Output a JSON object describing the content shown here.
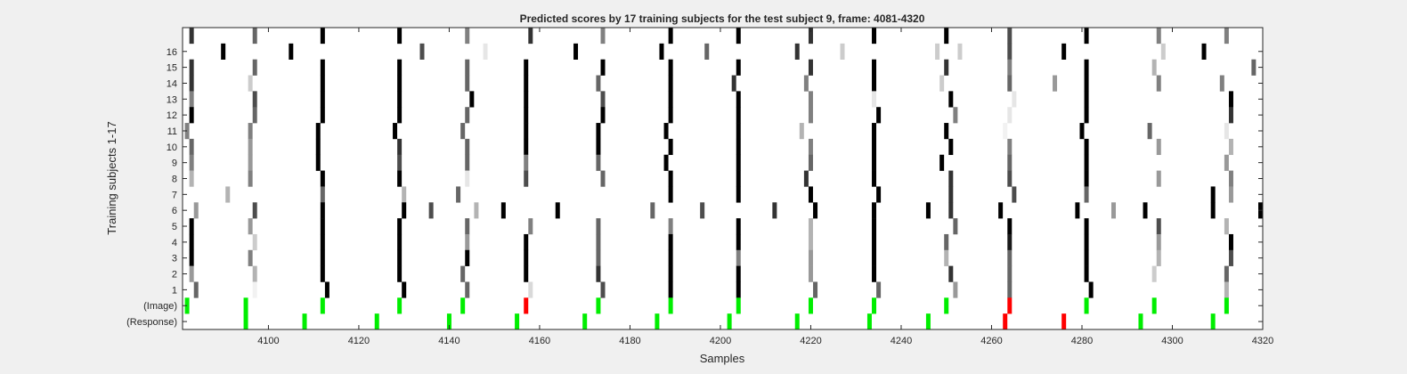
{
  "chart_data": {
    "type": "heatmap",
    "title": "Predicted scores by 17 training subjects for the test subject 9, frame: 4081-4320",
    "xlabel": "Samples",
    "ylabel": "Training subjects 1-17",
    "xlim": [
      4081,
      4320
    ],
    "x_ticks": [
      "4100",
      "4120",
      "4140",
      "4160",
      "4180",
      "4200",
      "4220",
      "4240",
      "4260",
      "4280",
      "4300",
      "4320"
    ],
    "y_ticks": [
      "16",
      "15",
      "14",
      "13",
      "12",
      "11",
      "10",
      "9",
      "8",
      "7",
      "6",
      "5",
      "4",
      "3",
      "2",
      "1",
      "(Image)",
      "(Response)"
    ],
    "rows": [
      "17",
      "16",
      "15",
      "14",
      "13",
      "12",
      "11",
      "10",
      "9",
      "8",
      "7",
      "6",
      "5",
      "4",
      "3",
      "2",
      "1",
      "(Image)",
      "(Response)"
    ],
    "colors": {
      "target": "#00ee00",
      "nontarget": "#ff0000",
      "background": "#ffffff",
      "figure": "#f0f0f0",
      "axis": "#262626"
    },
    "score_scale": "0 = white, 1 = black",
    "image_events": [
      {
        "x": 4082,
        "state": "target"
      },
      {
        "x": 4095,
        "state": "target"
      },
      {
        "x": 4112,
        "state": "target"
      },
      {
        "x": 4129,
        "state": "target"
      },
      {
        "x": 4143,
        "state": "target"
      },
      {
        "x": 4157,
        "state": "nontarget"
      },
      {
        "x": 4173,
        "state": "target"
      },
      {
        "x": 4189,
        "state": "target"
      },
      {
        "x": 4204,
        "state": "target"
      },
      {
        "x": 4220,
        "state": "target"
      },
      {
        "x": 4234,
        "state": "target"
      },
      {
        "x": 4250,
        "state": "target"
      },
      {
        "x": 4264,
        "state": "nontarget"
      },
      {
        "x": 4281,
        "state": "target"
      },
      {
        "x": 4296,
        "state": "target"
      },
      {
        "x": 4312,
        "state": "target"
      }
    ],
    "response_events": [
      {
        "x": 4095,
        "state": "target"
      },
      {
        "x": 4108,
        "state": "target"
      },
      {
        "x": 4124,
        "state": "target"
      },
      {
        "x": 4140,
        "state": "target"
      },
      {
        "x": 4155,
        "state": "target"
      },
      {
        "x": 4170,
        "state": "target"
      },
      {
        "x": 4186,
        "state": "target"
      },
      {
        "x": 4202,
        "state": "target"
      },
      {
        "x": 4217,
        "state": "target"
      },
      {
        "x": 4233,
        "state": "target"
      },
      {
        "x": 4246,
        "state": "target"
      },
      {
        "x": 4263,
        "state": "nontarget"
      },
      {
        "x": 4276,
        "state": "nontarget"
      },
      {
        "x": 4293,
        "state": "target"
      },
      {
        "x": 4309,
        "state": "target"
      }
    ],
    "scores": [
      {
        "row": "17",
        "cells": [
          [
            4083,
            0.8
          ],
          [
            4097,
            0.6
          ],
          [
            4112,
            1
          ],
          [
            4129,
            1
          ],
          [
            4144,
            0.5
          ],
          [
            4158,
            0.8
          ],
          [
            4174,
            0.5
          ],
          [
            4189,
            1
          ],
          [
            4204,
            1
          ],
          [
            4220,
            0.8
          ],
          [
            4234,
            1
          ],
          [
            4250,
            1
          ],
          [
            4264,
            0.7
          ],
          [
            4281,
            1
          ],
          [
            4297,
            0.5
          ],
          [
            4312,
            0.5
          ]
        ]
      },
      {
        "row": "16",
        "cells": [
          [
            4090,
            1
          ],
          [
            4105,
            1
          ],
          [
            4134,
            0.7
          ],
          [
            4148,
            0.1
          ],
          [
            4168,
            1
          ],
          [
            4187,
            1
          ],
          [
            4197,
            0.6
          ],
          [
            4217,
            0.8
          ],
          [
            4227,
            0.2
          ],
          [
            4248,
            0.2
          ],
          [
            4253,
            0.2
          ],
          [
            4264,
            0.7
          ],
          [
            4276,
            1
          ],
          [
            4298,
            0.2
          ],
          [
            4307,
            1
          ]
        ]
      },
      {
        "row": "15",
        "cells": [
          [
            4083,
            0.8
          ],
          [
            4097,
            0.6
          ],
          [
            4112,
            1
          ],
          [
            4129,
            1
          ],
          [
            4144,
            0.6
          ],
          [
            4157,
            1
          ],
          [
            4174,
            1
          ],
          [
            4189,
            1
          ],
          [
            4204,
            1
          ],
          [
            4220,
            0.8
          ],
          [
            4234,
            1
          ],
          [
            4250,
            0.8
          ],
          [
            4264,
            0.5
          ],
          [
            4281,
            1
          ],
          [
            4296,
            0.3
          ],
          [
            4318,
            0.6
          ]
        ]
      },
      {
        "row": "14",
        "cells": [
          [
            4083,
            0.8
          ],
          [
            4096,
            0.2
          ],
          [
            4112,
            1
          ],
          [
            4129,
            1
          ],
          [
            4144,
            0.6
          ],
          [
            4157,
            1
          ],
          [
            4173,
            0.6
          ],
          [
            4189,
            1
          ],
          [
            4203,
            0.8
          ],
          [
            4219,
            0.5
          ],
          [
            4234,
            1
          ],
          [
            4249,
            0.2
          ],
          [
            4264,
            0.6
          ],
          [
            4274,
            0.4
          ],
          [
            4281,
            1
          ],
          [
            4297,
            0.5
          ],
          [
            4311,
            0.5
          ]
        ]
      },
      {
        "row": "13",
        "cells": [
          [
            4083,
            0.5
          ],
          [
            4097,
            0.7
          ],
          [
            4112,
            1
          ],
          [
            4129,
            1
          ],
          [
            4145,
            1
          ],
          [
            4157,
            1
          ],
          [
            4174,
            0.7
          ],
          [
            4189,
            1
          ],
          [
            4204,
            1
          ],
          [
            4220,
            0.5
          ],
          [
            4234,
            0.1
          ],
          [
            4251,
            1
          ],
          [
            4265,
            0.1
          ],
          [
            4281,
            1
          ],
          [
            4313,
            1
          ]
        ]
      },
      {
        "row": "12",
        "cells": [
          [
            4083,
            1
          ],
          [
            4097,
            0.6
          ],
          [
            4112,
            1
          ],
          [
            4129,
            1
          ],
          [
            4144,
            0.6
          ],
          [
            4157,
            1
          ],
          [
            4174,
            1
          ],
          [
            4189,
            1
          ],
          [
            4204,
            1
          ],
          [
            4220,
            0.5
          ],
          [
            4235,
            1
          ],
          [
            4252,
            0.5
          ],
          [
            4264,
            0.1
          ],
          [
            4281,
            1
          ],
          [
            4313,
            0.8
          ]
        ]
      },
      {
        "row": "11",
        "cells": [
          [
            4082,
            0.5
          ],
          [
            4096,
            0.5
          ],
          [
            4111,
            1
          ],
          [
            4128,
            1
          ],
          [
            4143,
            0.6
          ],
          [
            4157,
            1
          ],
          [
            4173,
            1
          ],
          [
            4188,
            1
          ],
          [
            4204,
            1
          ],
          [
            4218,
            0.3
          ],
          [
            4234,
            1
          ],
          [
            4250,
            1
          ],
          [
            4263,
            0.05
          ],
          [
            4280,
            1
          ],
          [
            4295,
            0.6
          ],
          [
            4312,
            0.1
          ]
        ]
      },
      {
        "row": "10",
        "cells": [
          [
            4083,
            0.6
          ],
          [
            4096,
            0.4
          ],
          [
            4111,
            1
          ],
          [
            4129,
            0.8
          ],
          [
            4144,
            0.6
          ],
          [
            4157,
            1
          ],
          [
            4173,
            1
          ],
          [
            4189,
            1
          ],
          [
            4204,
            1
          ],
          [
            4220,
            0.5
          ],
          [
            4234,
            1
          ],
          [
            4251,
            1
          ],
          [
            4264,
            0.5
          ],
          [
            4281,
            1
          ],
          [
            4297,
            0.4
          ],
          [
            4313,
            0.3
          ]
        ]
      },
      {
        "row": "9",
        "cells": [
          [
            4083,
            0.5
          ],
          [
            4096,
            0.4
          ],
          [
            4111,
            1
          ],
          [
            4129,
            0.7
          ],
          [
            4144,
            0.6
          ],
          [
            4157,
            0.5
          ],
          [
            4173,
            0.6
          ],
          [
            4188,
            1
          ],
          [
            4204,
            1
          ],
          [
            4220,
            0.6
          ],
          [
            4234,
            1
          ],
          [
            4249,
            1
          ],
          [
            4264,
            0.6
          ],
          [
            4281,
            1
          ],
          [
            4312,
            0.4
          ]
        ]
      },
      {
        "row": "8",
        "cells": [
          [
            4083,
            0.3
          ],
          [
            4096,
            0.5
          ],
          [
            4112,
            1
          ],
          [
            4129,
            1
          ],
          [
            4144,
            0.1
          ],
          [
            4157,
            0.7
          ],
          [
            4174,
            0.6
          ],
          [
            4189,
            1
          ],
          [
            4204,
            1
          ],
          [
            4219,
            0.8
          ],
          [
            4234,
            1
          ],
          [
            4251,
            0.8
          ],
          [
            4264,
            0.7
          ],
          [
            4281,
            1
          ],
          [
            4297,
            0.4
          ],
          [
            4313,
            0.5
          ]
        ]
      },
      {
        "row": "7",
        "cells": [
          [
            4091,
            0.3
          ],
          [
            4112,
            0.6
          ],
          [
            4130,
            0.3
          ],
          [
            4142,
            0.6
          ],
          [
            4189,
            1
          ],
          [
            4204,
            1
          ],
          [
            4220,
            1
          ],
          [
            4235,
            1
          ],
          [
            4251,
            0.8
          ],
          [
            4265,
            0.7
          ],
          [
            4281,
            0.6
          ],
          [
            4309,
            1
          ],
          [
            4313,
            0.4
          ]
        ]
      },
      {
        "row": "6",
        "cells": [
          [
            4084,
            0.4
          ],
          [
            4097,
            0.7
          ],
          [
            4112,
            1
          ],
          [
            4130,
            1
          ],
          [
            4136,
            0.7
          ],
          [
            4146,
            0.3
          ],
          [
            4152,
            1
          ],
          [
            4164,
            1
          ],
          [
            4185,
            0.6
          ],
          [
            4196,
            0.7
          ],
          [
            4212,
            0.8
          ],
          [
            4221,
            1
          ],
          [
            4234,
            1
          ],
          [
            4246,
            1
          ],
          [
            4251,
            0.8
          ],
          [
            4262,
            1
          ],
          [
            4279,
            1
          ],
          [
            4287,
            0.4
          ],
          [
            4294,
            1
          ],
          [
            4309,
            1
          ],
          [
            4320,
            1
          ]
        ]
      },
      {
        "row": "5",
        "cells": [
          [
            4083,
            1
          ],
          [
            4096,
            0.4
          ],
          [
            4112,
            1
          ],
          [
            4129,
            1
          ],
          [
            4144,
            0.6
          ],
          [
            4158,
            0.5
          ],
          [
            4173,
            0.6
          ],
          [
            4189,
            0.5
          ],
          [
            4204,
            1
          ],
          [
            4220,
            0.3
          ],
          [
            4234,
            1
          ],
          [
            4252,
            0.6
          ],
          [
            4264,
            1
          ],
          [
            4281,
            1
          ],
          [
            4297,
            0.7
          ],
          [
            4312,
            0.3
          ]
        ]
      },
      {
        "row": "4",
        "cells": [
          [
            4083,
            1
          ],
          [
            4097,
            0.2
          ],
          [
            4112,
            1
          ],
          [
            4129,
            1
          ],
          [
            4144,
            0.4
          ],
          [
            4157,
            1
          ],
          [
            4173,
            0.6
          ],
          [
            4189,
            1
          ],
          [
            4204,
            1
          ],
          [
            4220,
            0.3
          ],
          [
            4234,
            1
          ],
          [
            4250,
            0.6
          ],
          [
            4264,
            0.9
          ],
          [
            4281,
            1
          ],
          [
            4297,
            0.4
          ],
          [
            4313,
            1
          ]
        ]
      },
      {
        "row": "3",
        "cells": [
          [
            4083,
            1
          ],
          [
            4096,
            0.5
          ],
          [
            4112,
            1
          ],
          [
            4129,
            1
          ],
          [
            4144,
            1
          ],
          [
            4157,
            1
          ],
          [
            4173,
            0.6
          ],
          [
            4189,
            1
          ],
          [
            4204,
            0.5
          ],
          [
            4220,
            0.4
          ],
          [
            4234,
            1
          ],
          [
            4250,
            0.3
          ],
          [
            4264,
            0.6
          ],
          [
            4281,
            1
          ],
          [
            4297,
            0.3
          ],
          [
            4313,
            0.7
          ]
        ]
      },
      {
        "row": "2",
        "cells": [
          [
            4083,
            0.4
          ],
          [
            4097,
            0.3
          ],
          [
            4112,
            1
          ],
          [
            4129,
            1
          ],
          [
            4143,
            0.6
          ],
          [
            4157,
            1
          ],
          [
            4173,
            0.8
          ],
          [
            4189,
            1
          ],
          [
            4204,
            1
          ],
          [
            4220,
            0.4
          ],
          [
            4234,
            1
          ],
          [
            4251,
            0.8
          ],
          [
            4264,
            0.6
          ],
          [
            4281,
            1
          ],
          [
            4296,
            0.2
          ],
          [
            4312,
            0.6
          ]
        ]
      },
      {
        "row": "1",
        "cells": [
          [
            4084,
            0.6
          ],
          [
            4097,
            0.05
          ],
          [
            4113,
            1
          ],
          [
            4130,
            1
          ],
          [
            4144,
            0.6
          ],
          [
            4158,
            0.15
          ],
          [
            4174,
            0.7
          ],
          [
            4189,
            1
          ],
          [
            4204,
            1
          ],
          [
            4221,
            0.6
          ],
          [
            4235,
            0.6
          ],
          [
            4252,
            0.4
          ],
          [
            4264,
            0.6
          ],
          [
            4282,
            1
          ],
          [
            4312,
            0.3
          ]
        ]
      }
    ]
  }
}
